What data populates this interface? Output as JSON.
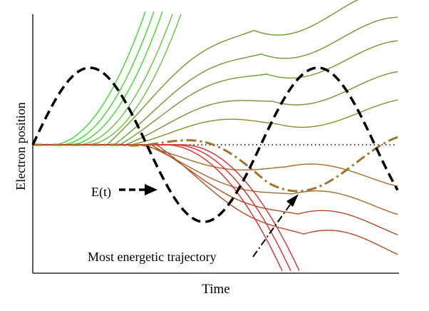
{
  "figure": {
    "ylabel": "Electron position",
    "xlabel": "Time",
    "field_label": "E(t)",
    "callout_label": "Most energetic trajectory"
  },
  "colors": {
    "axis": "#000000",
    "field": "#000000",
    "baseline": "#000000",
    "highlight": "#a0742a",
    "green_bright": "#35e024",
    "green_light": "#63c63a",
    "olive": "#6d9a2e",
    "brown_olive": "#8e8a2a",
    "brown": "#a66a2a",
    "brown_dark": "#b34a22",
    "red": "#dd2b2b"
  },
  "chart_data": {
    "type": "line",
    "xlabel": "Time",
    "ylabel": "Electron position",
    "series": [
      {
        "name": "E(t)",
        "style": "dashed",
        "color": "#000000"
      },
      {
        "name": "Most energetic trajectory",
        "style": "dash-dot",
        "color": "#a0742a"
      }
    ],
    "trajectory_groups": [
      {
        "color": "#35e024",
        "count": 3,
        "fate": "escapes upward"
      },
      {
        "color": "#63c63a",
        "count": 2,
        "fate": "escapes upward"
      },
      {
        "color": "#6d9a2e",
        "count": 3,
        "fate": "returns then oscillates above baseline"
      },
      {
        "color": "#a66a2a",
        "count": 3,
        "fate": "crosses baseline, oscillates below"
      },
      {
        "color": "#dd2b2b",
        "count": 3,
        "fate": "escapes downward"
      }
    ],
    "baseline": "dotted horizontal line at initial position",
    "grid": false,
    "legend": "none"
  }
}
